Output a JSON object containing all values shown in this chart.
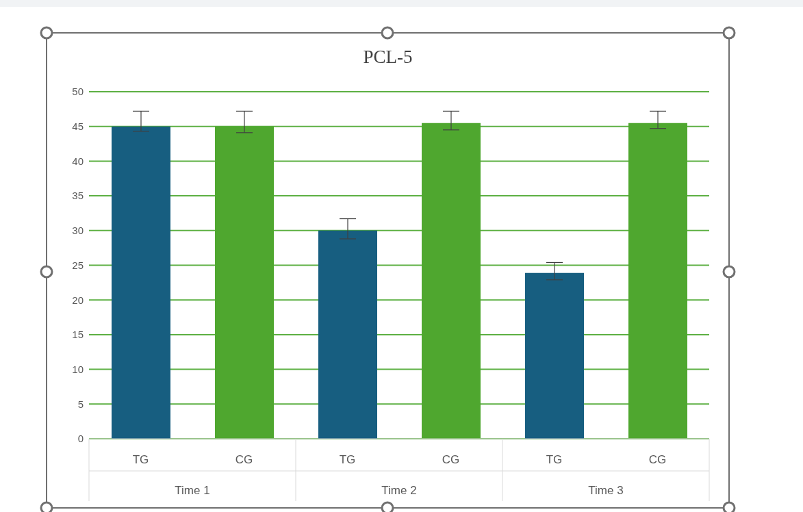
{
  "chart_data": {
    "type": "bar",
    "title": "PCL-5",
    "categories": [
      "Time 1",
      "Time 2",
      "Time 3"
    ],
    "series": [
      {
        "name": "TG",
        "color": "#175e80",
        "values": [
          45,
          30,
          23.9
        ],
        "errors": [
          [
            44.3,
            47.2
          ],
          [
            28.8,
            31.7
          ],
          [
            22.9,
            25.4
          ]
        ]
      },
      {
        "name": "CG",
        "color": "#4fa72f",
        "values": [
          45,
          45.5,
          45.5
        ],
        "errors": [
          [
            44.1,
            47.2
          ],
          [
            44.5,
            47.2
          ],
          [
            44.7,
            47.2
          ]
        ]
      }
    ],
    "ylim": [
      0,
      50
    ],
    "yticks": [
      0,
      5,
      10,
      15,
      20,
      25,
      30,
      35,
      40,
      45,
      50
    ],
    "grid": "y",
    "legend": false
  }
}
